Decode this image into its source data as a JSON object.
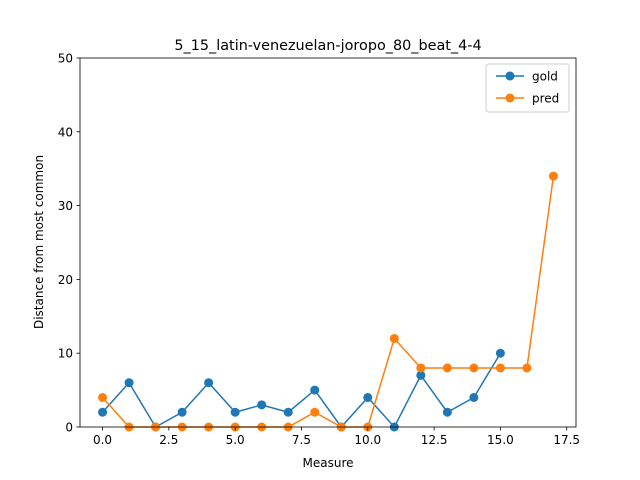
{
  "chart_data": {
    "type": "line",
    "title": "5_15_latin-venezuelan-joropo_80_beat_4-4",
    "xlabel": "Measure",
    "ylabel": "Distance from most common",
    "xlim": [
      -0.85,
      17.85
    ],
    "ylim": [
      0,
      50
    ],
    "xticks": [
      0.0,
      2.5,
      5.0,
      7.5,
      10.0,
      12.5,
      15.0,
      17.5
    ],
    "xtick_labels": [
      "0.0",
      "2.5",
      "5.0",
      "7.5",
      "10.0",
      "12.5",
      "15.0",
      "17.5"
    ],
    "yticks": [
      0,
      10,
      20,
      30,
      40,
      50
    ],
    "ytick_labels": [
      "0",
      "10",
      "20",
      "30",
      "40",
      "50"
    ],
    "grid": false,
    "legend_position": "top-right",
    "series": [
      {
        "name": "gold",
        "color": "#1f77b4",
        "marker": "circle",
        "x": [
          0,
          1,
          2,
          3,
          4,
          5,
          6,
          7,
          8,
          9,
          10,
          11,
          12,
          13,
          14,
          15
        ],
        "y": [
          2,
          6,
          0,
          2,
          6,
          2,
          3,
          2,
          5,
          0,
          4,
          0,
          7,
          2,
          4,
          10
        ]
      },
      {
        "name": "pred",
        "color": "#ff7f0e",
        "marker": "circle",
        "x": [
          0,
          1,
          2,
          3,
          4,
          5,
          6,
          7,
          8,
          9,
          10,
          11,
          12,
          13,
          14,
          15,
          16,
          17
        ],
        "y": [
          4,
          0,
          0,
          0,
          0,
          0,
          0,
          0,
          2,
          0,
          0,
          12,
          8,
          8,
          8,
          8,
          8,
          34
        ]
      }
    ]
  }
}
